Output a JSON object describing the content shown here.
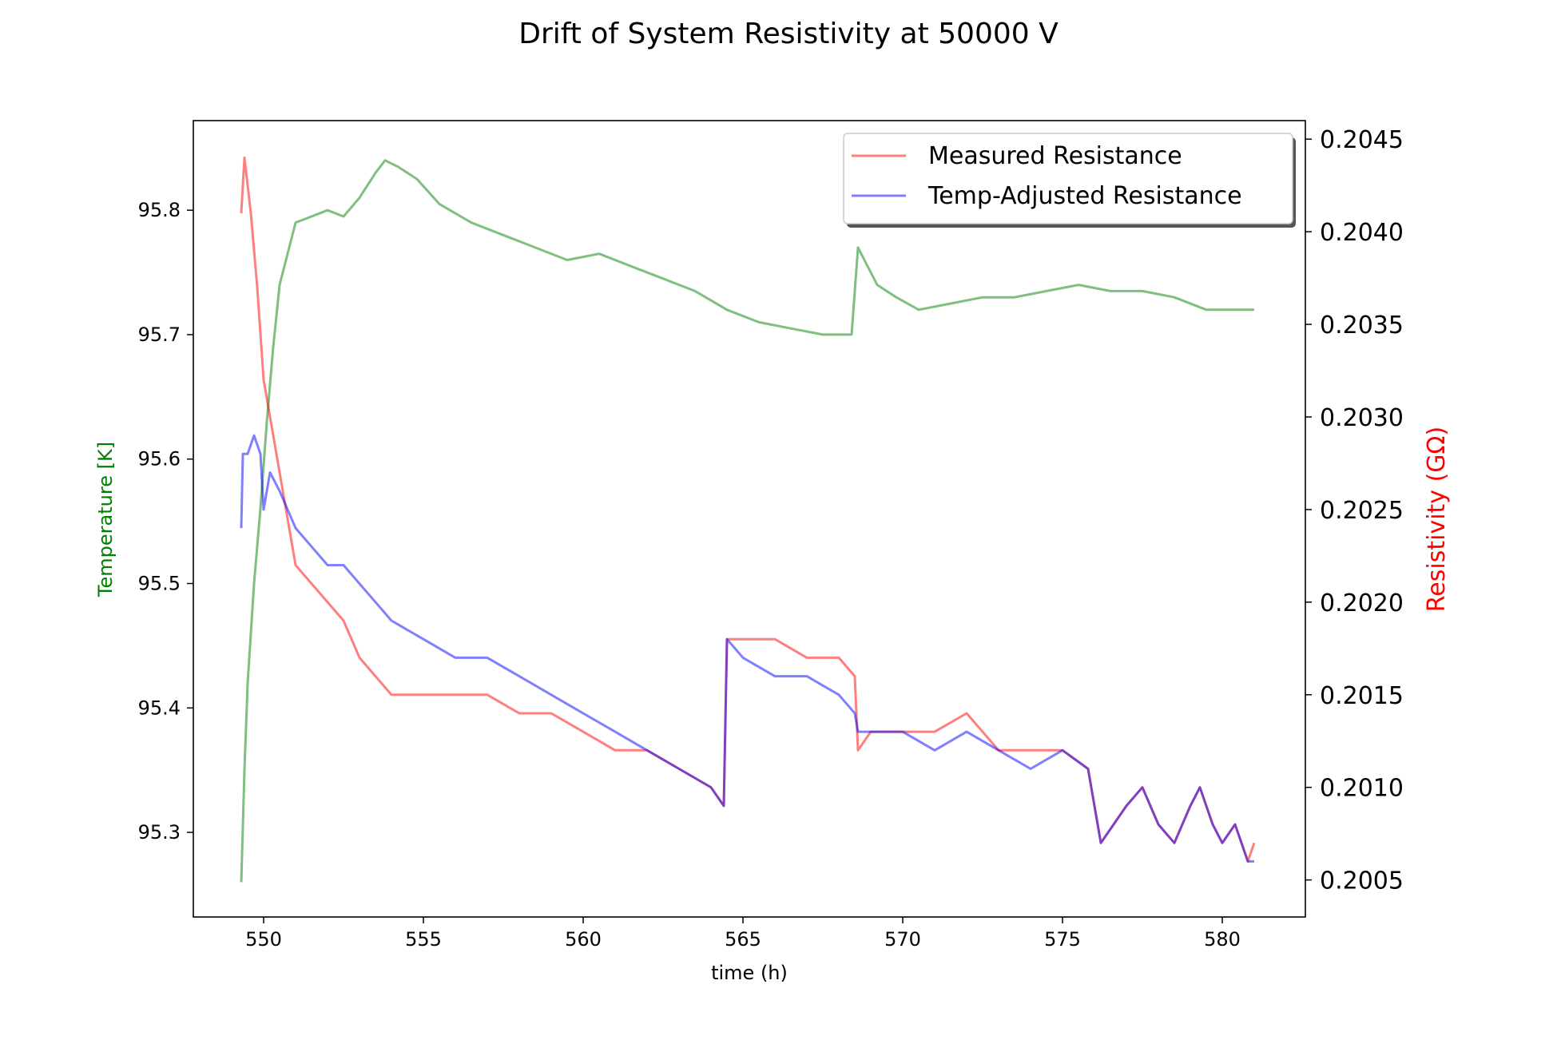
{
  "chart_data": {
    "type": "line",
    "title": "Drift of System Resistivity at 50000 V",
    "xlabel": "time (h)",
    "ylabel_left": "Temperature [K]",
    "ylabel_right": "Resistivity (GΩ)",
    "xlim": [
      547.8,
      582.6
    ],
    "ylim_left": [
      95.232,
      95.872
    ],
    "ylim_right": [
      0.2003,
      0.2046
    ],
    "x_ticks": [
      550,
      555,
      560,
      565,
      570,
      575,
      580
    ],
    "x_tick_labels": [
      "550",
      "555",
      "560",
      "565",
      "570",
      "575",
      "580"
    ],
    "y_left_ticks": [
      95.3,
      95.4,
      95.5,
      95.6,
      95.7,
      95.8
    ],
    "y_left_tick_labels": [
      "95.3",
      "95.4",
      "95.5",
      "95.6",
      "95.7",
      "95.8"
    ],
    "y_right_ticks": [
      0.2005,
      0.201,
      0.2015,
      0.202,
      0.2025,
      0.203,
      0.2035,
      0.204,
      0.2045
    ],
    "y_right_tick_labels": [
      "0.2005",
      "0.2010",
      "0.2015",
      "0.2020",
      "0.2025",
      "0.2030",
      "0.2035",
      "0.2040",
      "0.2045"
    ],
    "legend_position": "upper-right",
    "legend": [
      "Measured Resistance",
      "Temp-Adjusted Resistance"
    ],
    "colors": {
      "temperature": "#008000",
      "measured": "#ff0000",
      "adjusted": "#0000ff",
      "ylabel_left": "#008000",
      "ylabel_right": "#ff0000"
    },
    "series": [
      {
        "key": "temperature",
        "axis": "left",
        "x": [
          549.3,
          549.4,
          549.5,
          549.7,
          549.9,
          550.1,
          550.3,
          550.5,
          550.8,
          551.0,
          551.5,
          552.0,
          552.5,
          553.0,
          553.5,
          553.8,
          554.2,
          554.8,
          555.5,
          556.5,
          557.5,
          558.5,
          559.5,
          560.5,
          561.5,
          562.5,
          563.5,
          564.5,
          565.5,
          566.5,
          567.5,
          568.4,
          568.6,
          568.8,
          569.2,
          569.8,
          570.5,
          571.5,
          572.5,
          573.5,
          574.5,
          575.5,
          576.5,
          577.5,
          578.5,
          579.5,
          580.2,
          581.0
        ],
        "values": [
          95.26,
          95.35,
          95.42,
          95.5,
          95.56,
          95.63,
          95.69,
          95.74,
          95.77,
          95.79,
          95.795,
          95.8,
          95.795,
          95.81,
          95.83,
          95.84,
          95.835,
          95.825,
          95.805,
          95.79,
          95.78,
          95.77,
          95.76,
          95.765,
          95.755,
          95.745,
          95.735,
          95.72,
          95.71,
          95.705,
          95.7,
          95.7,
          95.77,
          95.76,
          95.74,
          95.73,
          95.72,
          95.725,
          95.73,
          95.73,
          95.735,
          95.74,
          95.735,
          95.735,
          95.73,
          95.72,
          95.72,
          95.72
        ]
      },
      {
        "key": "measured",
        "name": "Measured Resistance",
        "axis": "right",
        "x": [
          549.3,
          549.4,
          549.6,
          549.8,
          550.0,
          550.2,
          550.4,
          550.7,
          551.0,
          551.5,
          552.0,
          552.5,
          553.0,
          553.5,
          554.0,
          555.0,
          556.0,
          557.0,
          558.0,
          559.0,
          560.0,
          561.0,
          562.0,
          563.0,
          564.0,
          564.4,
          564.5,
          565.0,
          566.0,
          567.0,
          568.0,
          568.5,
          568.6,
          569.0,
          570.0,
          571.0,
          572.0,
          573.0,
          574.0,
          575.0,
          575.8,
          576.2,
          576.6,
          577.0,
          577.5,
          578.0,
          578.5,
          579.0,
          579.3,
          579.7,
          580.0,
          580.4,
          580.8,
          581.0
        ],
        "values": [
          0.2041,
          0.2044,
          0.2041,
          0.2037,
          0.2032,
          0.203,
          0.2028,
          0.2025,
          0.2022,
          0.2021,
          0.202,
          0.2019,
          0.2017,
          0.2016,
          0.2015,
          0.2015,
          0.2015,
          0.2015,
          0.2014,
          0.2014,
          0.2013,
          0.2012,
          0.2012,
          0.2011,
          0.201,
          0.2009,
          0.2018,
          0.2018,
          0.2018,
          0.2017,
          0.2017,
          0.2016,
          0.2012,
          0.2013,
          0.2013,
          0.2013,
          0.2014,
          0.2012,
          0.2012,
          0.2012,
          0.2011,
          0.2007,
          0.2008,
          0.2009,
          0.201,
          0.2008,
          0.2007,
          0.2009,
          0.201,
          0.2008,
          0.2007,
          0.2008,
          0.2006,
          0.2007
        ]
      },
      {
        "key": "adjusted",
        "name": "Temp-Adjusted Resistance",
        "axis": "right",
        "x": [
          549.3,
          549.35,
          549.5,
          549.7,
          549.9,
          550.0,
          550.2,
          550.5,
          551.0,
          551.5,
          552.0,
          552.5,
          553.0,
          553.5,
          554.0,
          555.0,
          556.0,
          557.0,
          558.0,
          559.0,
          560.0,
          561.0,
          562.0,
          563.0,
          564.0,
          564.4,
          564.5,
          565.0,
          566.0,
          567.0,
          568.0,
          568.5,
          568.6,
          569.0,
          570.0,
          571.0,
          572.0,
          573.0,
          574.0,
          575.0,
          575.8,
          576.2,
          576.6,
          577.0,
          577.5,
          578.0,
          578.5,
          579.0,
          579.3,
          579.7,
          580.0,
          580.4,
          580.8,
          581.0
        ],
        "values": [
          0.2024,
          0.2028,
          0.2028,
          0.2029,
          0.2028,
          0.2025,
          0.2027,
          0.2026,
          0.2024,
          0.2023,
          0.2022,
          0.2022,
          0.2021,
          0.202,
          0.2019,
          0.2018,
          0.2017,
          0.2017,
          0.2016,
          0.2015,
          0.2014,
          0.2013,
          0.2012,
          0.2011,
          0.201,
          0.2009,
          0.2018,
          0.2017,
          0.2016,
          0.2016,
          0.2015,
          0.2014,
          0.2013,
          0.2013,
          0.2013,
          0.2012,
          0.2013,
          0.2012,
          0.2011,
          0.2012,
          0.2011,
          0.2007,
          0.2008,
          0.2009,
          0.201,
          0.2008,
          0.2007,
          0.2009,
          0.201,
          0.2008,
          0.2007,
          0.2008,
          0.2006,
          0.2006
        ]
      }
    ]
  }
}
